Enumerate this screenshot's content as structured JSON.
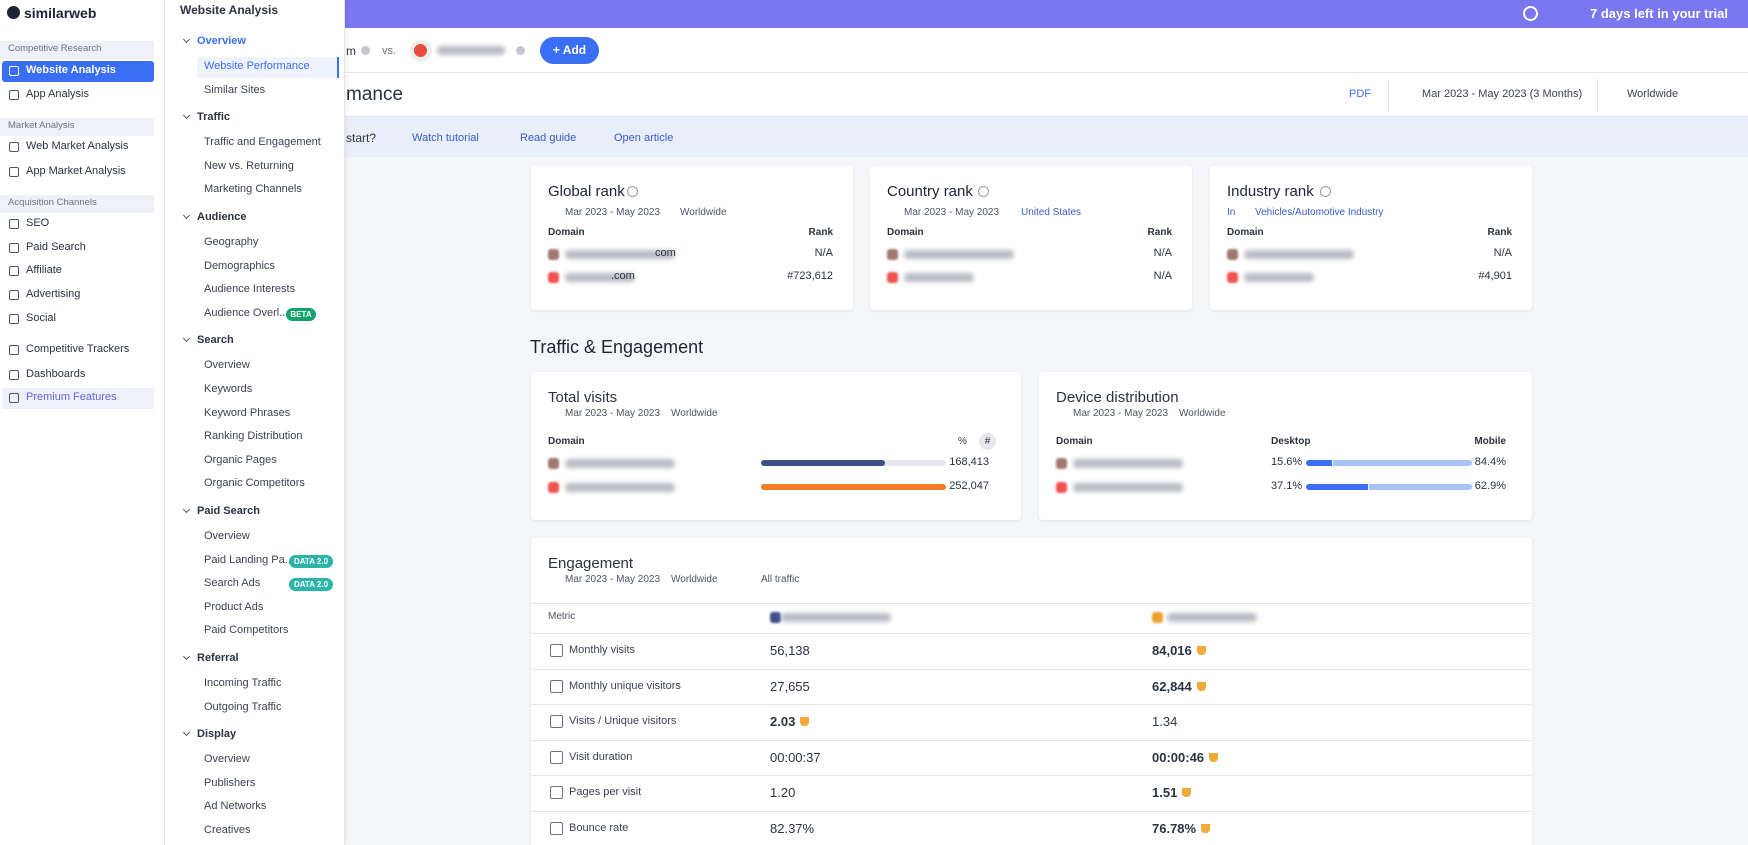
{
  "brand": "similarweb",
  "trial": "7 days left in your trial",
  "sidebar": {
    "sections": [
      {
        "title": "Competitive Research",
        "items": [
          "Website Analysis",
          "App Analysis"
        ]
      },
      {
        "title": "Market Analysis",
        "items": [
          "Web Market Analysis",
          "App Market Analysis"
        ]
      },
      {
        "title": "Acquisition Channels",
        "items": [
          "SEO",
          "Paid Search",
          "Affiliate",
          "Advertising",
          "Social"
        ]
      }
    ],
    "extra": [
      "Competitive Trackers",
      "Dashboards",
      "Premium Features"
    ]
  },
  "submenu": {
    "title": "Website Analysis",
    "groups": [
      {
        "title": "Overview",
        "items": [
          {
            "label": "Website Performance"
          },
          {
            "label": "Similar Sites"
          }
        ]
      },
      {
        "title": "Traffic",
        "items": [
          {
            "label": "Traffic and Engagement"
          },
          {
            "label": "New vs. Returning"
          },
          {
            "label": "Marketing Channels"
          }
        ]
      },
      {
        "title": "Audience",
        "items": [
          {
            "label": "Geography"
          },
          {
            "label": "Demographics"
          },
          {
            "label": "Audience Interests"
          },
          {
            "label": "Audience Overl...",
            "badge": "BETA"
          }
        ]
      },
      {
        "title": "Search",
        "items": [
          {
            "label": "Overview"
          },
          {
            "label": "Keywords"
          },
          {
            "label": "Keyword Phrases"
          },
          {
            "label": "Ranking Distribution"
          },
          {
            "label": "Organic Pages"
          },
          {
            "label": "Organic Competitors"
          }
        ]
      },
      {
        "title": "Paid Search",
        "items": [
          {
            "label": "Overview"
          },
          {
            "label": "Paid Landing Pa...",
            "badge": "DATA 2.0"
          },
          {
            "label": "Search Ads",
            "badge": "DATA 2.0"
          },
          {
            "label": "Product Ads"
          },
          {
            "label": "Paid Competitors"
          }
        ]
      },
      {
        "title": "Referral",
        "items": [
          {
            "label": "Incoming Traffic"
          },
          {
            "label": "Outgoing Traffic"
          }
        ]
      },
      {
        "title": "Display",
        "items": [
          {
            "label": "Overview"
          },
          {
            "label": "Publishers"
          },
          {
            "label": "Ad Networks"
          },
          {
            "label": "Creatives"
          }
        ]
      }
    ]
  },
  "compare": {
    "site1_suffix": "m",
    "vs": "vs.",
    "add": "+ Add"
  },
  "header": {
    "title": "mance",
    "pdf": "PDF",
    "date": "Mar 2023 - May 2023 (3 Months)",
    "region": "Worldwide"
  },
  "help": {
    "prompt": "start?",
    "links": [
      "Watch tutorial",
      "Read guide",
      "Open article"
    ]
  },
  "ranks": [
    {
      "title": "Global rank",
      "date": "Mar 2023 - May 2023",
      "region": "Worldwide",
      "cols": [
        "Domain",
        "Rank"
      ],
      "rows": [
        {
          "domain": "com",
          "rank": "N/A"
        },
        {
          "domain": ".com",
          "rank": "#723,612"
        }
      ]
    },
    {
      "title": "Country rank",
      "date": "Mar 2023 - May 2023",
      "region": "United States",
      "cols": [
        "Domain",
        "Rank"
      ],
      "rows": [
        {
          "rank": "N/A"
        },
        {
          "rank": "N/A"
        }
      ]
    },
    {
      "title": "Industry rank",
      "prefix": "In",
      "industry": "Vehicles/Automotive Industry",
      "cols": [
        "Domain",
        "Rank"
      ],
      "rows": [
        {
          "rank": "N/A"
        },
        {
          "rank": "#4,901"
        }
      ]
    }
  ],
  "section_title": "Traffic & Engagement",
  "total_visits": {
    "title": "Total visits",
    "date": "Mar 2023 - May 2023",
    "region": "Worldwide",
    "cols": [
      "Domain",
      "%",
      "#"
    ],
    "values": [
      168413,
      252047
    ],
    "value_labels": [
      "168,413",
      "252,047"
    ],
    "colors": [
      "#3f4f8a",
      "#f07c25"
    ]
  },
  "device": {
    "title": "Device distribution",
    "date": "Mar 2023 - May 2023",
    "region": "Worldwide",
    "cols": [
      "Domain",
      "Desktop",
      "Mobile"
    ],
    "desktop": [
      15.6,
      37.1
    ],
    "desktop_labels": [
      "15.6%",
      "37.1%"
    ],
    "mobile": [
      84.4,
      62.9
    ],
    "mobile_labels": [
      "84.4%",
      "62.9%"
    ]
  },
  "engagement": {
    "title": "Engagement",
    "date": "Mar 2023 - May 2023",
    "region": "Worldwide",
    "traffic": "All traffic",
    "header": "Metric",
    "rows": [
      {
        "metric": "Monthly visits",
        "values": [
          "56,138",
          "84,016"
        ],
        "winner": 1
      },
      {
        "metric": "Monthly unique visitors",
        "values": [
          "27,655",
          "62,844"
        ],
        "winner": 1
      },
      {
        "metric": "Visits / Unique visitors",
        "values": [
          "2.03",
          "1.34"
        ],
        "winner": 0
      },
      {
        "metric": "Visit duration",
        "values": [
          "00:00:37",
          "00:00:46"
        ],
        "winner": 1
      },
      {
        "metric": "Pages per visit",
        "values": [
          "1.20",
          "1.51"
        ],
        "winner": 1
      },
      {
        "metric": "Bounce rate",
        "values": [
          "82.37%",
          "76.78%"
        ],
        "winner": 1
      }
    ]
  }
}
